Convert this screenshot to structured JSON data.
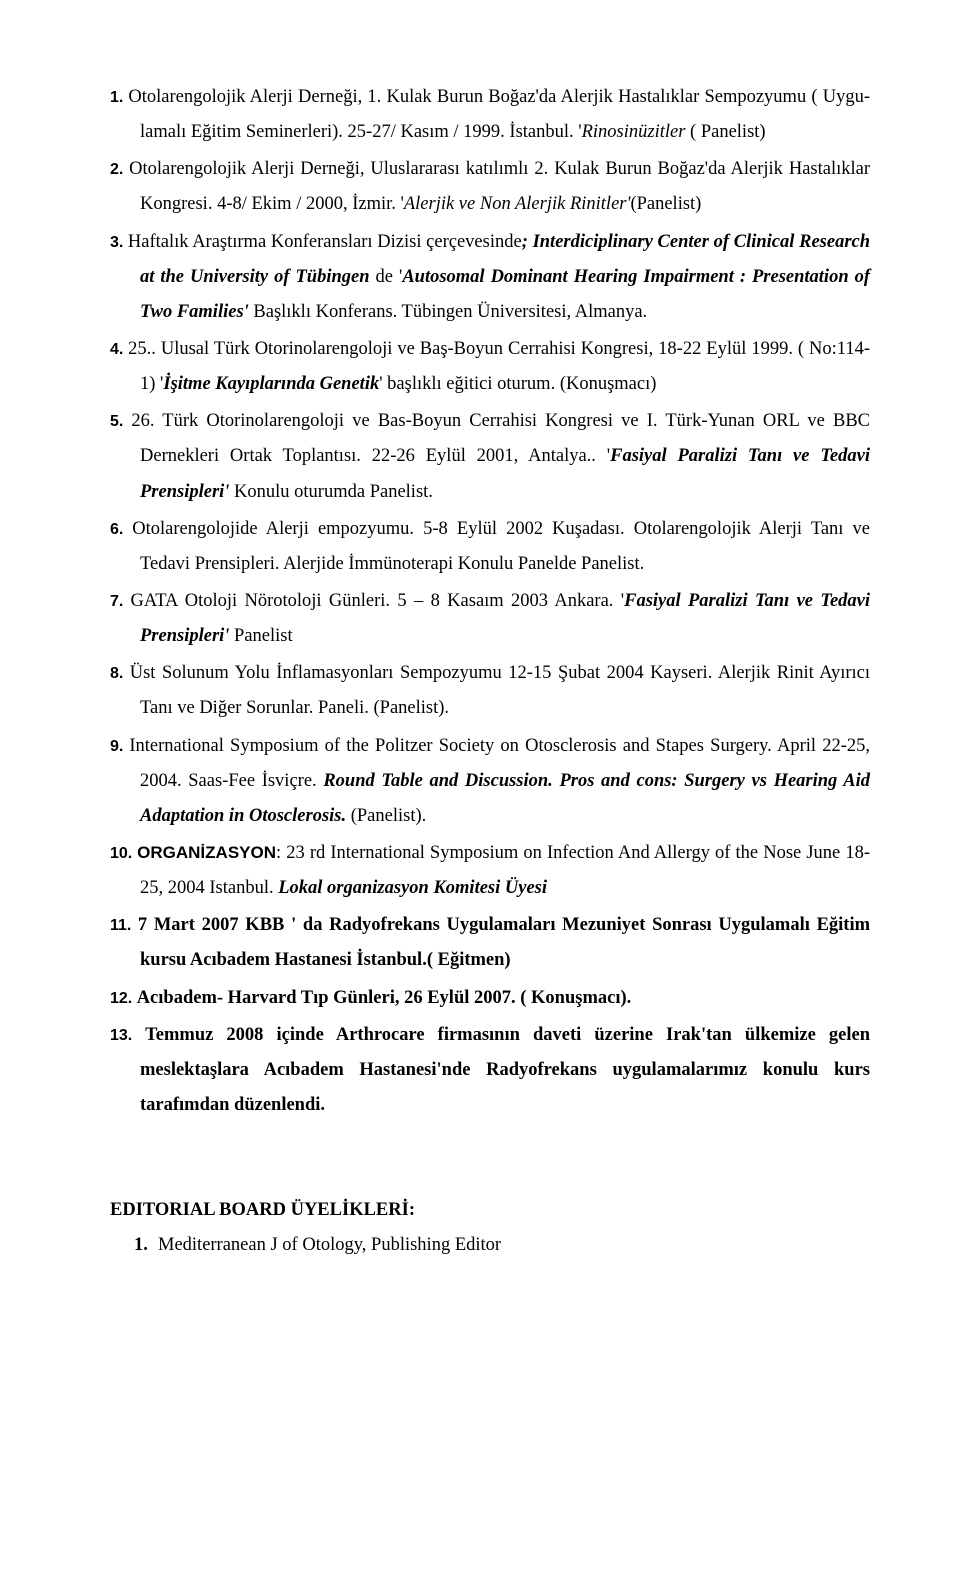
{
  "items": [
    {
      "num": "1",
      "runs": [
        {
          "t": "Otolarengolojik Alerji Derneği, 1. Kulak Burun Boğaz'da Alerjik Hastalıklar Sempozyumu ( Uygu-lamalı Eğitim Seminerleri). 25-27/ Kasım / 1999. İstanbul. '",
          "c": ""
        },
        {
          "t": "Rinosinüzitler",
          "c": "italic"
        },
        {
          "t": " ( Panelist)",
          "c": ""
        }
      ]
    },
    {
      "num": "2",
      "runs": [
        {
          "t": "Otolarengolojik Alerji Derneği, Uluslararası katılımlı 2. Kulak Burun Boğaz'da Alerjik Hastalıklar Kongresi. 4-8/ Ekim / 2000, İzmir. '",
          "c": ""
        },
        {
          "t": "Alerjik ve Non Alerjik Rinitler'",
          "c": "italic"
        },
        {
          "t": "(Panelist)",
          "c": ""
        }
      ]
    },
    {
      "num": "3",
      "runs": [
        {
          "t": "Haftalık Araştırma Konferansları Dizisi çerçevesinde",
          "c": ""
        },
        {
          "t": "; Interdiciplinary Center of Clinical Research at the University of Tübingen ",
          "c": "bolditalic"
        },
        {
          "t": "de '",
          "c": ""
        },
        {
          "t": "Autosomal Dominant Hearing Impairment : Presentation of Two Families' ",
          "c": "bolditalic"
        },
        {
          "t": "Başlıklı Konferans. Tübingen Üniversitesi, Almanya.",
          "c": ""
        }
      ]
    },
    {
      "num": "4",
      "runs": [
        {
          "t": "25.. Ulusal  Türk Otorinolarengoloji ve Baş-Boyun Cerrahisi Kongresi, 18-22 Eylül 1999. ( No:114-1) '",
          "c": ""
        },
        {
          "t": "İşitme Kayıplarında Genetik",
          "c": "bolditalic"
        },
        {
          "t": "' başlıklı eğitici oturum. (Konuşmacı)",
          "c": ""
        }
      ]
    },
    {
      "num": "5",
      "runs": [
        {
          "t": "26. Türk Otorinolarengoloji ve Bas-Boyun Cerrahisi Kongresi ve I. Türk-Yunan ORL ve BBC Dernekleri Ortak Toplantısı. 22-26 Eylül 2001, Antalya.. '",
          "c": ""
        },
        {
          "t": "Fasiyal Paralizi Tanı ve Tedavi Prensipleri' ",
          "c": "bolditalic"
        },
        {
          "t": "Konulu oturumda Panelist.",
          "c": ""
        }
      ]
    },
    {
      "num": "6",
      "runs": [
        {
          "t": "Otolarengolojide Alerji empozyumu. 5-8 Eylül 2002 Kuşadası. Otolarengolojik Alerji Tanı ve Tedavi Prensipleri. Alerjide İmmünoterapi Konulu Panelde Panelist.",
          "c": ""
        }
      ]
    },
    {
      "num": "7",
      "runs": [
        {
          "t": "GATA Otoloji Nörotoloji Günleri. 5 – 8 Kasaım 2003 Ankara. '",
          "c": ""
        },
        {
          "t": "Fasiyal Paralizi Tanı ve Tedavi Prensipleri'",
          "c": "bolditalic"
        },
        {
          "t": " Panelist",
          "c": ""
        }
      ]
    },
    {
      "num": "8",
      "runs": [
        {
          "t": "Üst Solunum Yolu İnflamasyonları Sempozyumu 12-15 Şubat 2004 Kayseri. Alerjik Rinit Ayırıcı Tanı ve Diğer Sorunlar. Paneli. (Panelist).",
          "c": ""
        }
      ]
    },
    {
      "num": "9",
      "runs": [
        {
          "t": "International Symposium of the Politzer Society on Otosclerosis and Stapes Surgery. April 22-25, 2004. Saas-Fee İsviçre. ",
          "c": ""
        },
        {
          "t": "Round Table and Discussion. Pros and cons: Surgery vs Hearing Aid Adaptation in Otosclerosis.",
          "c": "bolditalic"
        },
        {
          "t": " (Panelist).",
          "c": ""
        }
      ]
    },
    {
      "num": "10",
      "runs": [
        {
          "t": "ORGANİZASYON",
          "c": "bold org-label"
        },
        {
          "t": ": 23 rd International Symposium on Infection And Allergy of the Nose June 18-25, 2004 Istanbul. ",
          "c": ""
        },
        {
          "t": "Lokal organizasyon Komitesi Üyesi",
          "c": "bolditalic"
        }
      ]
    },
    {
      "num": "11",
      "runs": [
        {
          "t": "7 Mart 2007 KBB ' da Radyofrekans Uygulamaları Mezuniyet Sonrası Uygulamalı Eğitim kursu Acıbadem Hastanesi İstanbul.( Eğitmen)",
          "c": "bold"
        }
      ]
    },
    {
      "num": "12",
      "runs": [
        {
          "t": "Acıbadem- Harvard Tıp Günleri, 26 Eylül 2007. ( Konuşmacı).",
          "c": "bold"
        }
      ]
    },
    {
      "num": "13",
      "runs": [
        {
          "t": "Temmuz 2008 içinde Arthrocare firmasının daveti üzerine  Irak'tan ülkemize gelen meslektaşlara Acıbadem Hastanesi'nde Radyofrekans uygulamalarımız konulu kurs tarafımdan düzenlendi.",
          "c": "bold"
        }
      ]
    }
  ],
  "section_heading": "EDITORIAL BOARD ÜYELİKLERİ:",
  "sub_items": [
    {
      "t": "Mediterranean J of Otology, Publishing Editor"
    }
  ]
}
